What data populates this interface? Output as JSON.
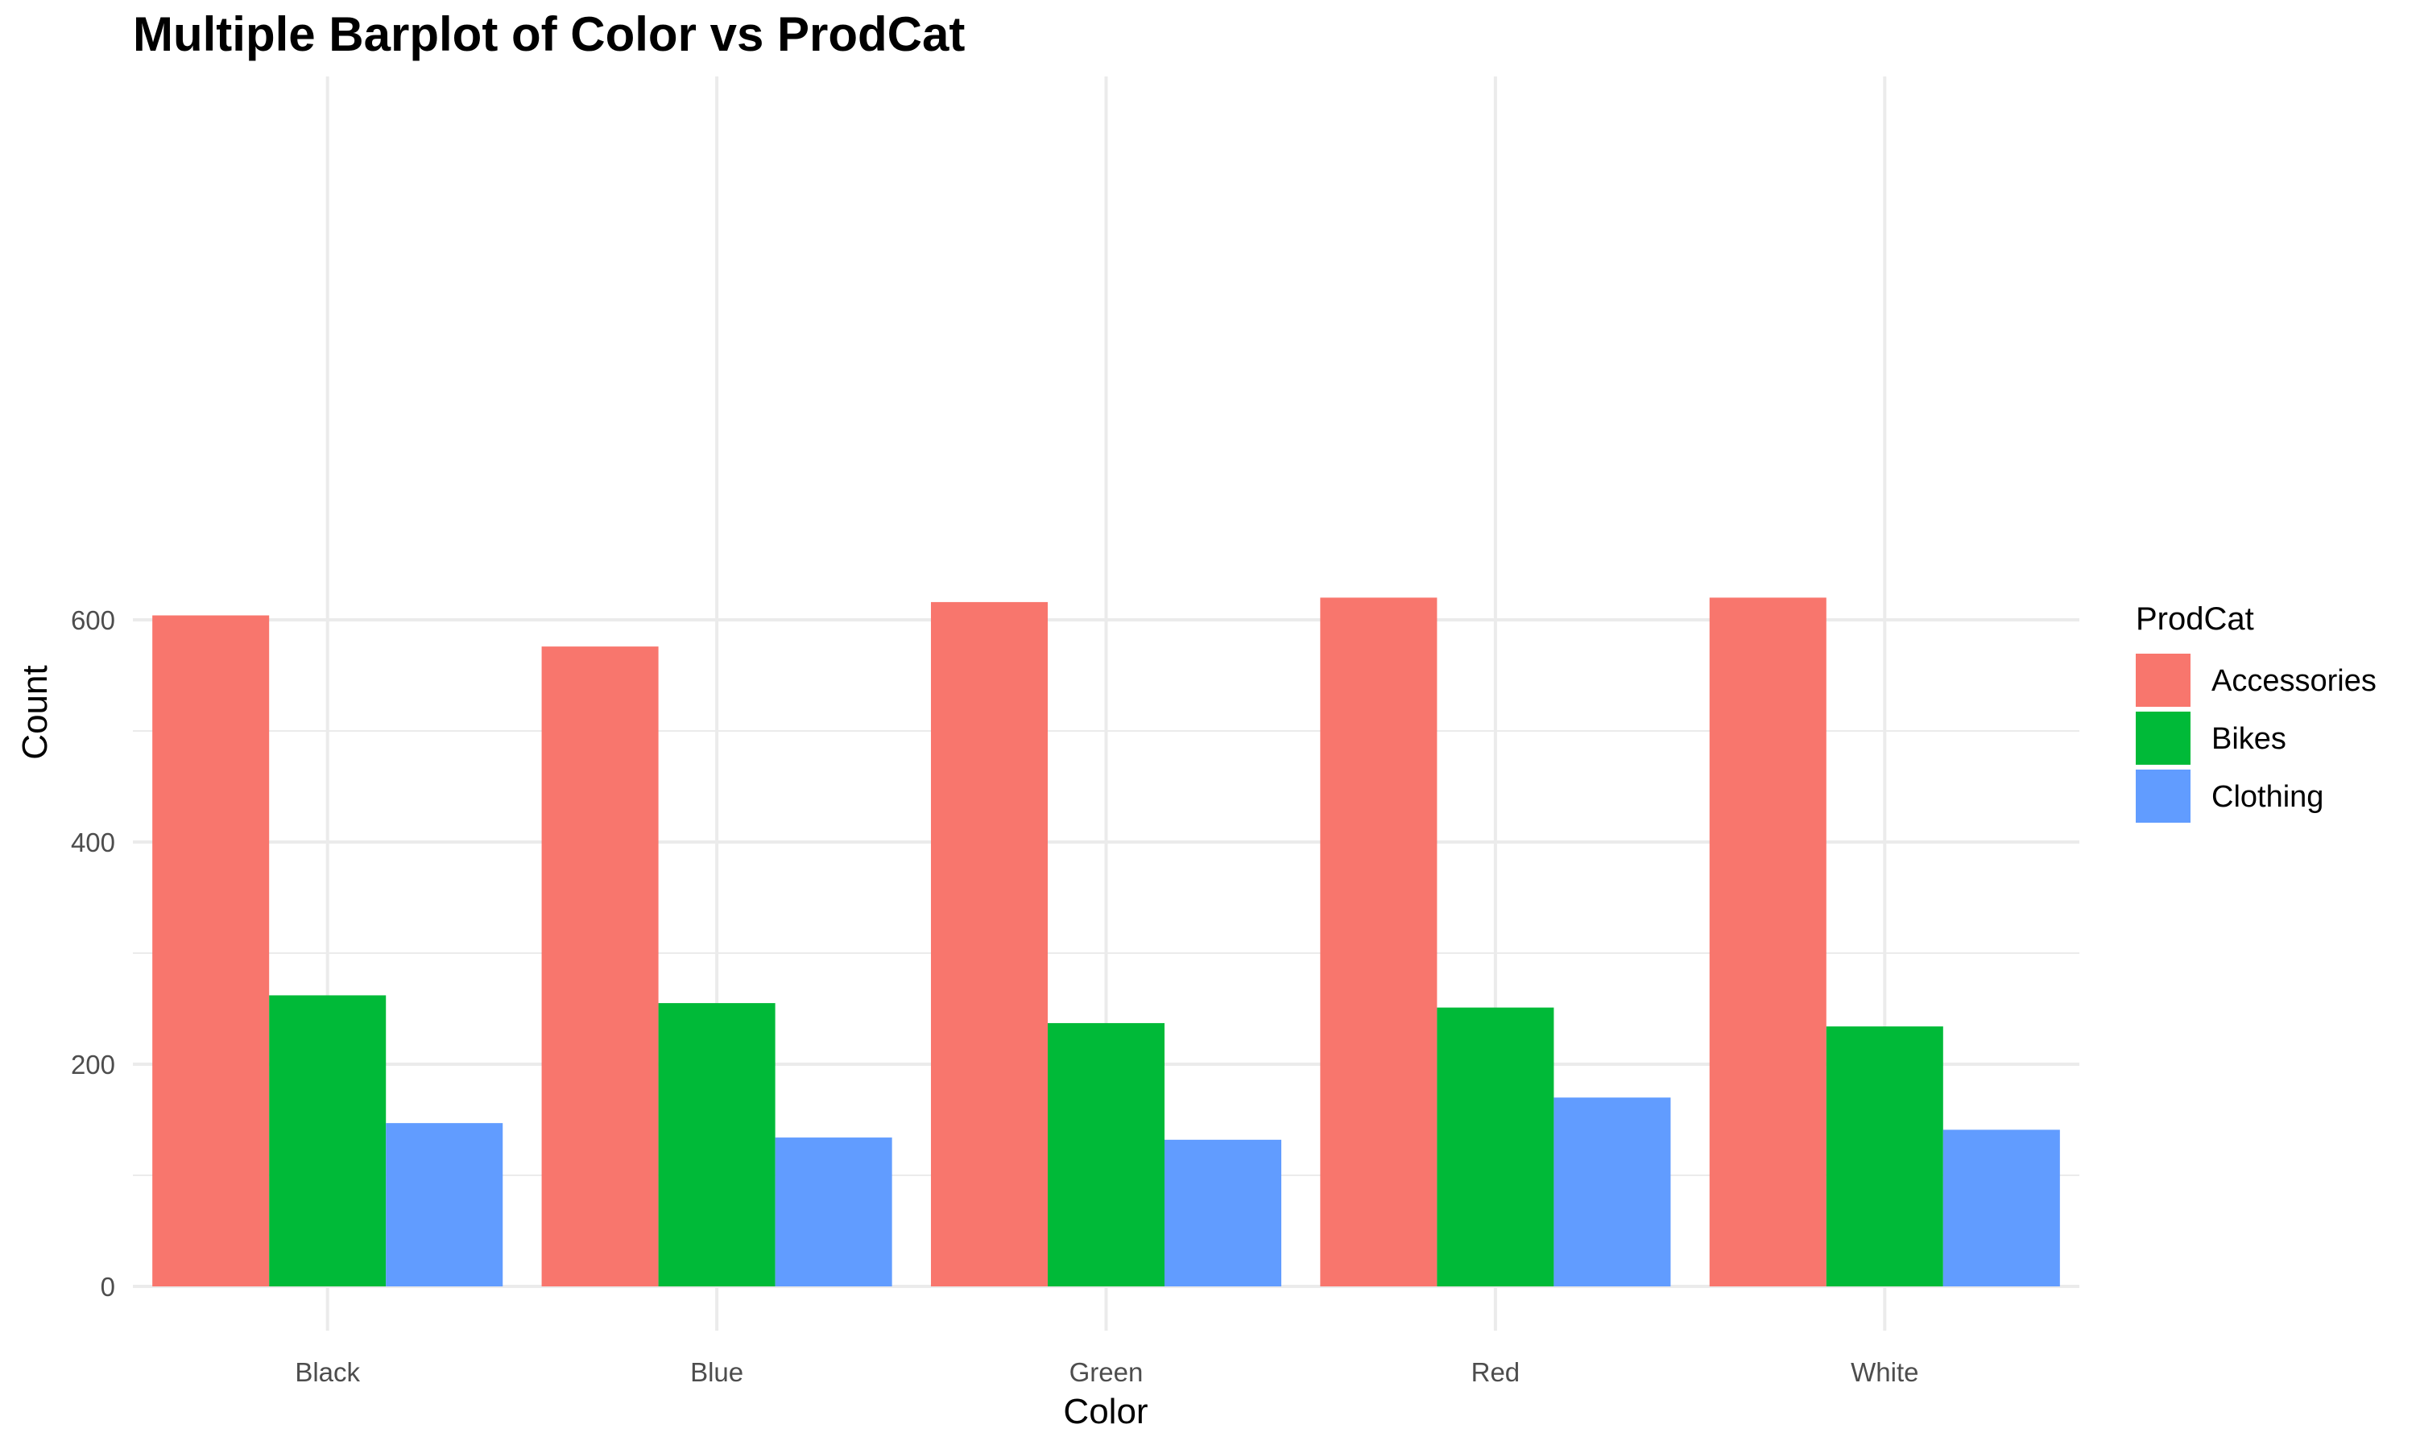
{
  "chart_data": {
    "type": "bar",
    "title": "Multiple Barplot of Color vs ProdCat",
    "xlabel": "Color",
    "ylabel": "Count",
    "categories": [
      "Black",
      "Blue",
      "Green",
      "Red",
      "White"
    ],
    "series": [
      {
        "name": "Accessories",
        "color": "#F8766D",
        "values": [
          604,
          576,
          616,
          620,
          620
        ]
      },
      {
        "name": "Bikes",
        "color": "#00BA38",
        "values": [
          262,
          255,
          237,
          251,
          234
        ]
      },
      {
        "name": "Clothing",
        "color": "#619CFF",
        "values": [
          147,
          134,
          132,
          170,
          141
        ]
      }
    ],
    "ylim": [
      0,
      650
    ],
    "y_ticks": [
      "0",
      "200",
      "400",
      "600"
    ],
    "grid": true,
    "legend": {
      "title": "ProdCat",
      "position": "right"
    }
  }
}
